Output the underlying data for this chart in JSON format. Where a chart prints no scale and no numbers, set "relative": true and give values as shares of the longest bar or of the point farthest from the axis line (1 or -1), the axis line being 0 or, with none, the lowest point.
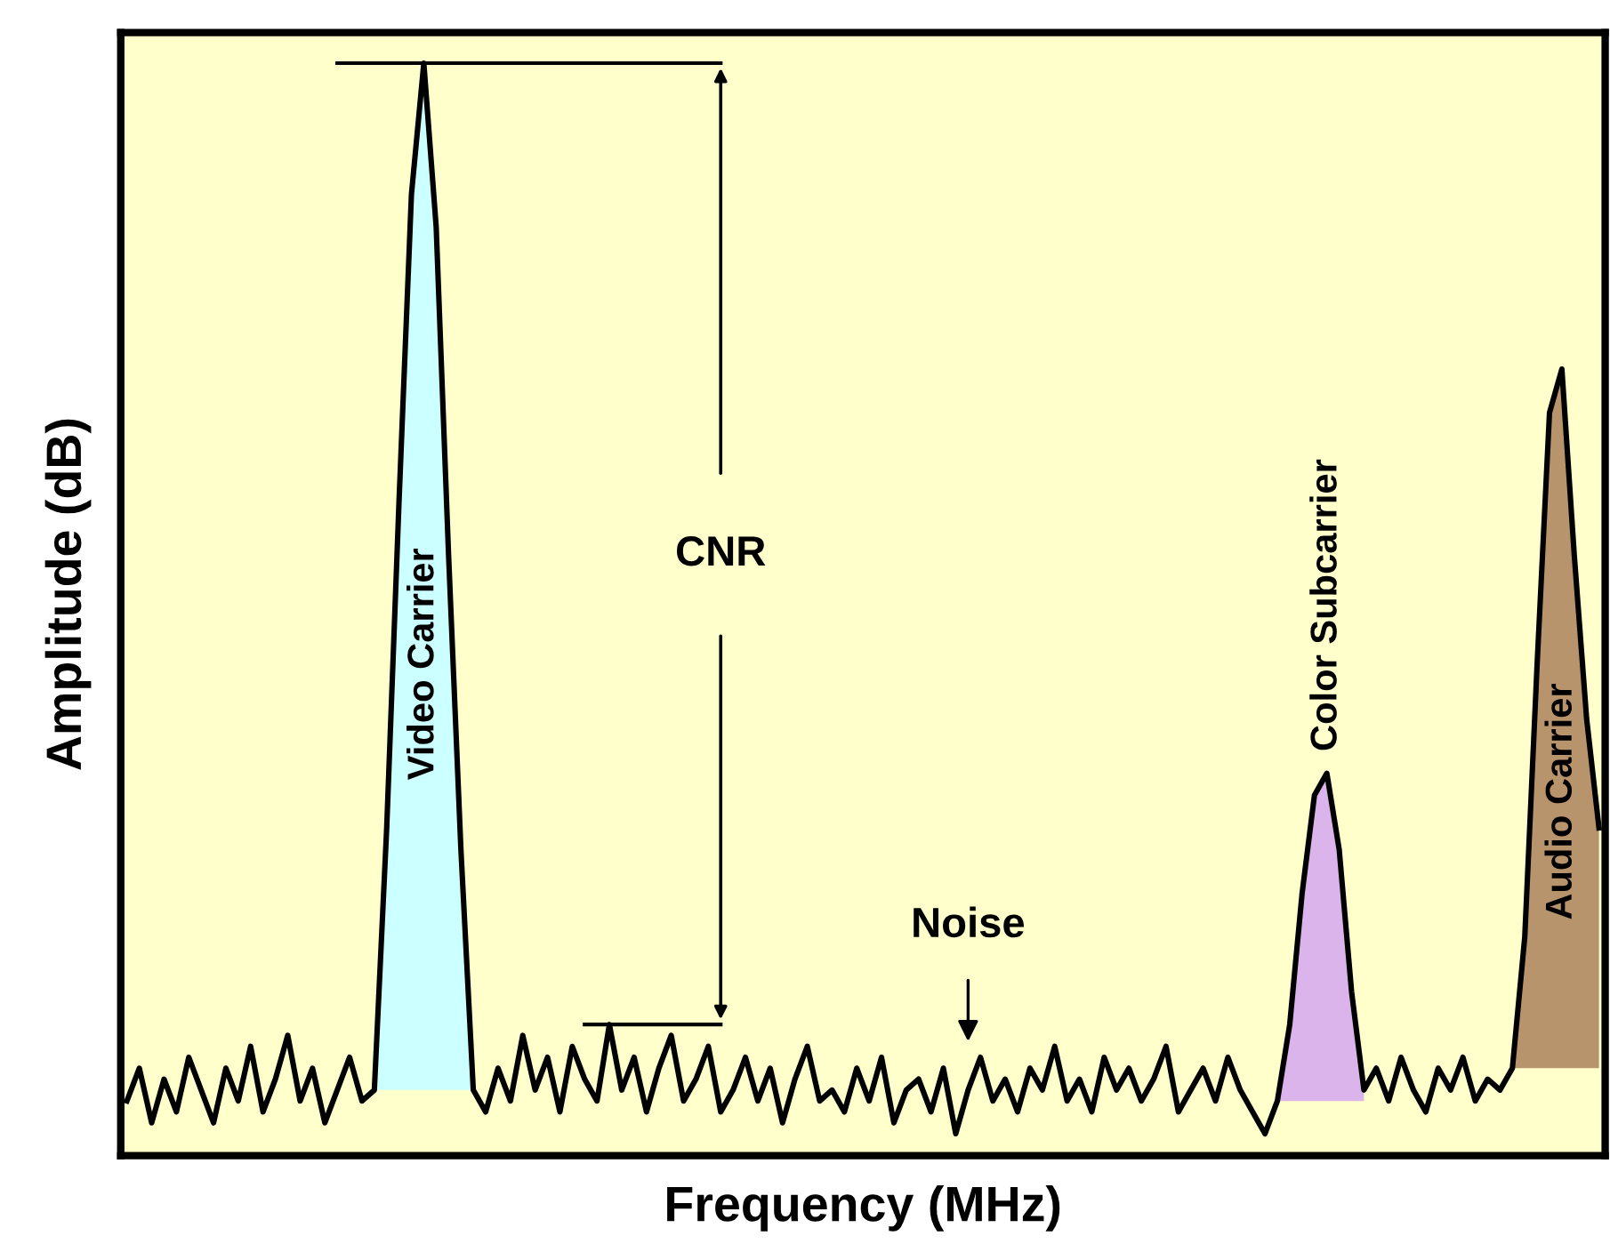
{
  "chart_data": {
    "type": "line",
    "relative": true,
    "xlabel": "Frequency (MHz)",
    "ylabel": "Amplitude (dB)",
    "categories": [
      null,
      null,
      null,
      null,
      null,
      null,
      null,
      null,
      null,
      null,
      null,
      null,
      null,
      null,
      null,
      null,
      null,
      null,
      null,
      null,
      null,
      null,
      null,
      null,
      null,
      null,
      null,
      null,
      null,
      null,
      null,
      null,
      null,
      null,
      null,
      null,
      null,
      null,
      null,
      null,
      null,
      null,
      null,
      null,
      null,
      null,
      null,
      null,
      null,
      null,
      null,
      null,
      null,
      null,
      null,
      null,
      null,
      null,
      null,
      null,
      null,
      null,
      null,
      null,
      null,
      null,
      null,
      null,
      null,
      null,
      null,
      null,
      null,
      null,
      null,
      null,
      null,
      null,
      null,
      null,
      null,
      null,
      null,
      null,
      null,
      null,
      null,
      null,
      null,
      null,
      null,
      null,
      null,
      null,
      null,
      null,
      null,
      null,
      null,
      null,
      null,
      null,
      null,
      null,
      null,
      null,
      null,
      null,
      null,
      null,
      null,
      null,
      null,
      null,
      null,
      null,
      null,
      null,
      null,
      null
    ],
    "series": [
      {
        "color": "#000000",
        "values": [
          0.05,
          0.08,
          0.03,
          0.07,
          0.04,
          0.09,
          0.06,
          0.03,
          0.08,
          0.05,
          0.1,
          0.04,
          0.07,
          0.11,
          0.05,
          0.08,
          0.03,
          0.06,
          0.09,
          0.05,
          0.06,
          0.3,
          0.6,
          0.88,
          1.0,
          0.85,
          0.55,
          0.28,
          0.06,
          0.04,
          0.08,
          0.05,
          0.11,
          0.06,
          0.09,
          0.04,
          0.1,
          0.07,
          0.05,
          0.12,
          0.06,
          0.09,
          0.04,
          0.08,
          0.11,
          0.05,
          0.07,
          0.1,
          0.04,
          0.06,
          0.09,
          0.05,
          0.08,
          0.03,
          0.07,
          0.1,
          0.05,
          0.06,
          0.04,
          0.08,
          0.05,
          0.09,
          0.03,
          0.06,
          0.07,
          0.04,
          0.08,
          0.02,
          0.06,
          0.09,
          0.05,
          0.07,
          0.04,
          0.08,
          0.06,
          0.1,
          0.05,
          0.07,
          0.04,
          0.09,
          0.06,
          0.08,
          0.05,
          0.07,
          0.1,
          0.04,
          0.06,
          0.08,
          0.05,
          0.09,
          0.06,
          0.04,
          0.02,
          0.05,
          0.12,
          0.24,
          0.33,
          0.35,
          0.28,
          0.15,
          0.06,
          0.08,
          0.05,
          0.09,
          0.06,
          0.04,
          0.08,
          0.06,
          0.09,
          0.05,
          0.07,
          0.06,
          0.08,
          0.2,
          0.45,
          0.68,
          0.72,
          0.55,
          0.4,
          0.3
        ]
      },
      {
        "type": "area",
        "name": "Video Carrier",
        "color": "#ccffff",
        "values": [
          null,
          null,
          null,
          null,
          null,
          null,
          null,
          null,
          null,
          null,
          null,
          null,
          null,
          null,
          null,
          null,
          null,
          null,
          null,
          null,
          0.06,
          0.3,
          0.6,
          0.88,
          1.0,
          0.85,
          0.55,
          0.28,
          0.06,
          null,
          null,
          null,
          null,
          null,
          null,
          null,
          null,
          null,
          null,
          null,
          null,
          null,
          null,
          null,
          null,
          null,
          null,
          null,
          null,
          null,
          null,
          null,
          null,
          null,
          null,
          null,
          null,
          null,
          null,
          null,
          null,
          null,
          null,
          null,
          null,
          null,
          null,
          null,
          null,
          null,
          null,
          null,
          null,
          null,
          null,
          null,
          null,
          null,
          null,
          null,
          null,
          null,
          null,
          null,
          null,
          null,
          null,
          null,
          null,
          null,
          null,
          null,
          null,
          null,
          null,
          null,
          null,
          null,
          null,
          null,
          null,
          null,
          null,
          null,
          null,
          null,
          null,
          null,
          null,
          null,
          null,
          null,
          null,
          null,
          null,
          null,
          null,
          null,
          null,
          null
        ]
      },
      {
        "type": "area",
        "name": "Color Subcarrier",
        "color": "#dcb4ec",
        "values": [
          null,
          null,
          null,
          null,
          null,
          null,
          null,
          null,
          null,
          null,
          null,
          null,
          null,
          null,
          null,
          null,
          null,
          null,
          null,
          null,
          null,
          null,
          null,
          null,
          null,
          null,
          null,
          null,
          null,
          null,
          null,
          null,
          null,
          null,
          null,
          null,
          null,
          null,
          null,
          null,
          null,
          null,
          null,
          null,
          null,
          null,
          null,
          null,
          null,
          null,
          null,
          null,
          null,
          null,
          null,
          null,
          null,
          null,
          null,
          null,
          null,
          null,
          null,
          null,
          null,
          null,
          null,
          null,
          null,
          null,
          null,
          null,
          null,
          null,
          null,
          null,
          null,
          null,
          null,
          null,
          null,
          null,
          null,
          null,
          null,
          null,
          null,
          null,
          null,
          null,
          null,
          null,
          null,
          0.05,
          0.12,
          0.24,
          0.33,
          0.35,
          0.28,
          0.15,
          0.06,
          null,
          null,
          null,
          null,
          null,
          null,
          null,
          null,
          null,
          null,
          null,
          null,
          null,
          null,
          null,
          null,
          null,
          null,
          null
        ]
      },
      {
        "type": "area",
        "name": "Audio Carrier",
        "color": "#b8946c",
        "values": [
          null,
          null,
          null,
          null,
          null,
          null,
          null,
          null,
          null,
          null,
          null,
          null,
          null,
          null,
          null,
          null,
          null,
          null,
          null,
          null,
          null,
          null,
          null,
          null,
          null,
          null,
          null,
          null,
          null,
          null,
          null,
          null,
          null,
          null,
          null,
          null,
          null,
          null,
          null,
          null,
          null,
          null,
          null,
          null,
          null,
          null,
          null,
          null,
          null,
          null,
          null,
          null,
          null,
          null,
          null,
          null,
          null,
          null,
          null,
          null,
          null,
          null,
          null,
          null,
          null,
          null,
          null,
          null,
          null,
          null,
          null,
          null,
          null,
          null,
          null,
          null,
          null,
          null,
          null,
          null,
          null,
          null,
          null,
          null,
          null,
          null,
          null,
          null,
          null,
          null,
          null,
          null,
          null,
          null,
          null,
          null,
          null,
          null,
          null,
          null,
          null,
          null,
          null,
          null,
          null,
          null,
          null,
          null,
          null,
          null,
          null,
          null,
          0.08,
          0.2,
          0.45,
          0.68,
          0.72,
          0.55,
          0.4,
          0.3
        ]
      }
    ],
    "annotations": [
      "CNR",
      "Noise"
    ],
    "legend": false,
    "marker": "none"
  }
}
